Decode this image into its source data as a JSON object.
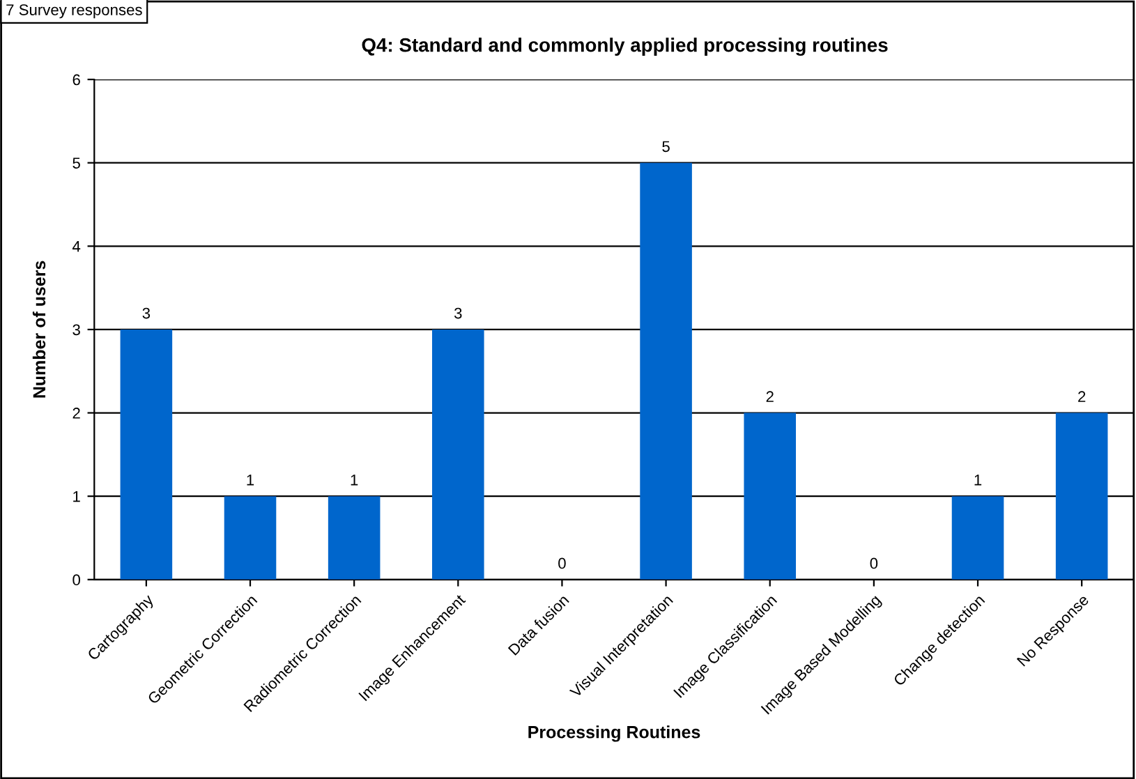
{
  "chart_data": {
    "type": "bar",
    "title": "Q4: Standard and commonly applied processing routines",
    "xlabel": "Processing Routines",
    "ylabel": "Number of users",
    "categories": [
      "Cartography",
      "Geometric Correction",
      "Radiometric Correction",
      "Image Enhancement",
      "Data fusion",
      "Visual Interpretation",
      "Image Classification",
      "Image Based Modelling",
      "Change detection",
      "No Response"
    ],
    "values": [
      3,
      1,
      1,
      3,
      0,
      5,
      2,
      0,
      1,
      2
    ],
    "color": "#0066cc",
    "ylim": [
      0,
      6
    ],
    "yticks": [
      0,
      1,
      2,
      3,
      4,
      5,
      6
    ],
    "grid": "y",
    "data_labels": true,
    "legend": false,
    "annotations": [
      "7 Survey responses"
    ]
  }
}
